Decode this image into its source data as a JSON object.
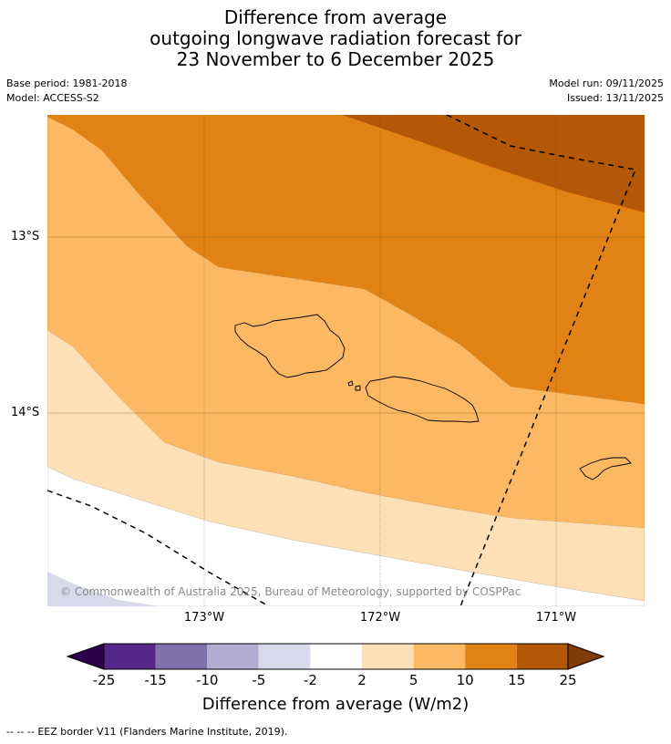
{
  "title": {
    "line1": "Difference from average",
    "line2": "outgoing longwave radiation forecast for",
    "line3": "23 November to 6 December 2025"
  },
  "meta": {
    "base_period": "Base period: 1981-2018",
    "model": "Model: ACCESS-S2",
    "model_run": "Model run: 09/11/2025",
    "issued": "Issued: 13/11/2025"
  },
  "map": {
    "lat_labels": [
      "13°S",
      "14°S"
    ],
    "lon_labels": [
      "173°W",
      "172°W",
      "171°W"
    ],
    "copyright": "© Commonwealth of Australia 2025, Bureau of Meteorology, supported by COSPPac",
    "fill_colors": {
      "anom_10_15": "#e08214",
      "anom_15_25": "#b35806",
      "anom_5_10": "#fdb863",
      "anom_2_5": "#fee0b6",
      "anom_neg2_2": "#ffffff",
      "anom_neg5_neg2": "#d8daeb"
    }
  },
  "colorbar": {
    "title": "Difference from average (W/m2)",
    "ticks": [
      "-25",
      "-15",
      "-10",
      "-5",
      "-2",
      "2",
      "5",
      "10",
      "15",
      "25"
    ],
    "colors": [
      "#2d004b",
      "#542788",
      "#8073ac",
      "#b2abd2",
      "#d8daeb",
      "#ffffff",
      "#fee0b6",
      "#fdb863",
      "#e08214",
      "#b35806",
      "#7f3b08"
    ]
  },
  "footer": {
    "legend_symbol": "-- -- --",
    "legend_text": "EEZ border V11 (Flanders Marine Institute, 2019)."
  }
}
